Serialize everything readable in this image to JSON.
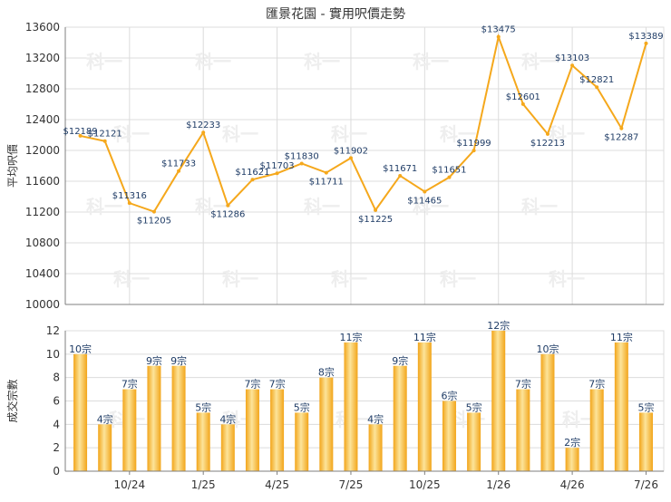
{
  "title": "匯景花園 - 實用呎價走勢",
  "watermark": "科一",
  "colors": {
    "line": "#F5A81C",
    "bar_light": "#FCE49A",
    "bar_dark": "#F2A51A",
    "grid": "#DCDCDC",
    "axis": "#7F7F7F",
    "label": "#1F3C66",
    "text": "#333333"
  },
  "chart_data": [
    {
      "type": "line",
      "ylabel": "平均呎價",
      "ylim": [
        10000,
        13600
      ],
      "yticks": [
        10000,
        10400,
        10800,
        11200,
        11600,
        12000,
        12400,
        12800,
        13200,
        13600
      ],
      "x": [
        "8/24",
        "9/24",
        "10/24",
        "11/24",
        "12/24",
        "1/25",
        "2/25",
        "3/25",
        "4/25",
        "5/25",
        "6/25",
        "7/25",
        "8/25",
        "9/25",
        "10/25",
        "11/25",
        "12/25",
        "1/26",
        "2/26",
        "3/26",
        "4/26",
        "5/26",
        "6/26",
        "7/26"
      ],
      "values": [
        12189,
        12121,
        11316,
        11205,
        11733,
        12233,
        11286,
        11621,
        11703,
        11830,
        11711,
        11902,
        11225,
        11671,
        11465,
        11651,
        11999,
        13475,
        12601,
        12213,
        13103,
        12821,
        12287,
        13389
      ],
      "labels": [
        "$12189",
        "$12121",
        "$11316",
        "$11205",
        "$11733",
        "$12233",
        "$11286",
        "$11621",
        "$11703",
        "$11830",
        "$11711",
        "$11902",
        "$11225",
        "$11671",
        "$11465",
        "$11651",
        "$11999",
        "$13475",
        "$12601",
        "$12213",
        "$13103",
        "$12821",
        "$12287",
        "$13389"
      ],
      "grid": true
    },
    {
      "type": "bar",
      "ylabel": "成交宗數",
      "ylim": [
        0,
        12
      ],
      "yticks": [
        0,
        2,
        4,
        6,
        8,
        10,
        12
      ],
      "x": [
        "8/24",
        "9/24",
        "10/24",
        "11/24",
        "12/24",
        "1/25",
        "2/25",
        "3/25",
        "4/25",
        "5/25",
        "6/25",
        "7/25",
        "8/25",
        "9/25",
        "10/25",
        "11/25",
        "12/25",
        "1/26",
        "2/26",
        "3/26",
        "4/26",
        "5/26",
        "6/26",
        "7/26"
      ],
      "values": [
        10,
        4,
        7,
        9,
        9,
        5,
        4,
        7,
        7,
        5,
        8,
        11,
        4,
        9,
        11,
        6,
        5,
        12,
        7,
        10,
        2,
        7,
        11,
        5
      ],
      "labels": [
        "10宗",
        "4宗",
        "7宗",
        "9宗",
        "9宗",
        "5宗",
        "4宗",
        "7宗",
        "7宗",
        "5宗",
        "8宗",
        "11宗",
        "4宗",
        "9宗",
        "11宗",
        "6宗",
        "5宗",
        "12宗",
        "7宗",
        "10宗",
        "2宗",
        "7宗",
        "11宗",
        "5宗"
      ],
      "xtick_labels": [
        "10/24",
        "1/25",
        "4/25",
        "7/25",
        "10/25",
        "1/26",
        "4/26",
        "7/26"
      ],
      "grid": true
    }
  ]
}
